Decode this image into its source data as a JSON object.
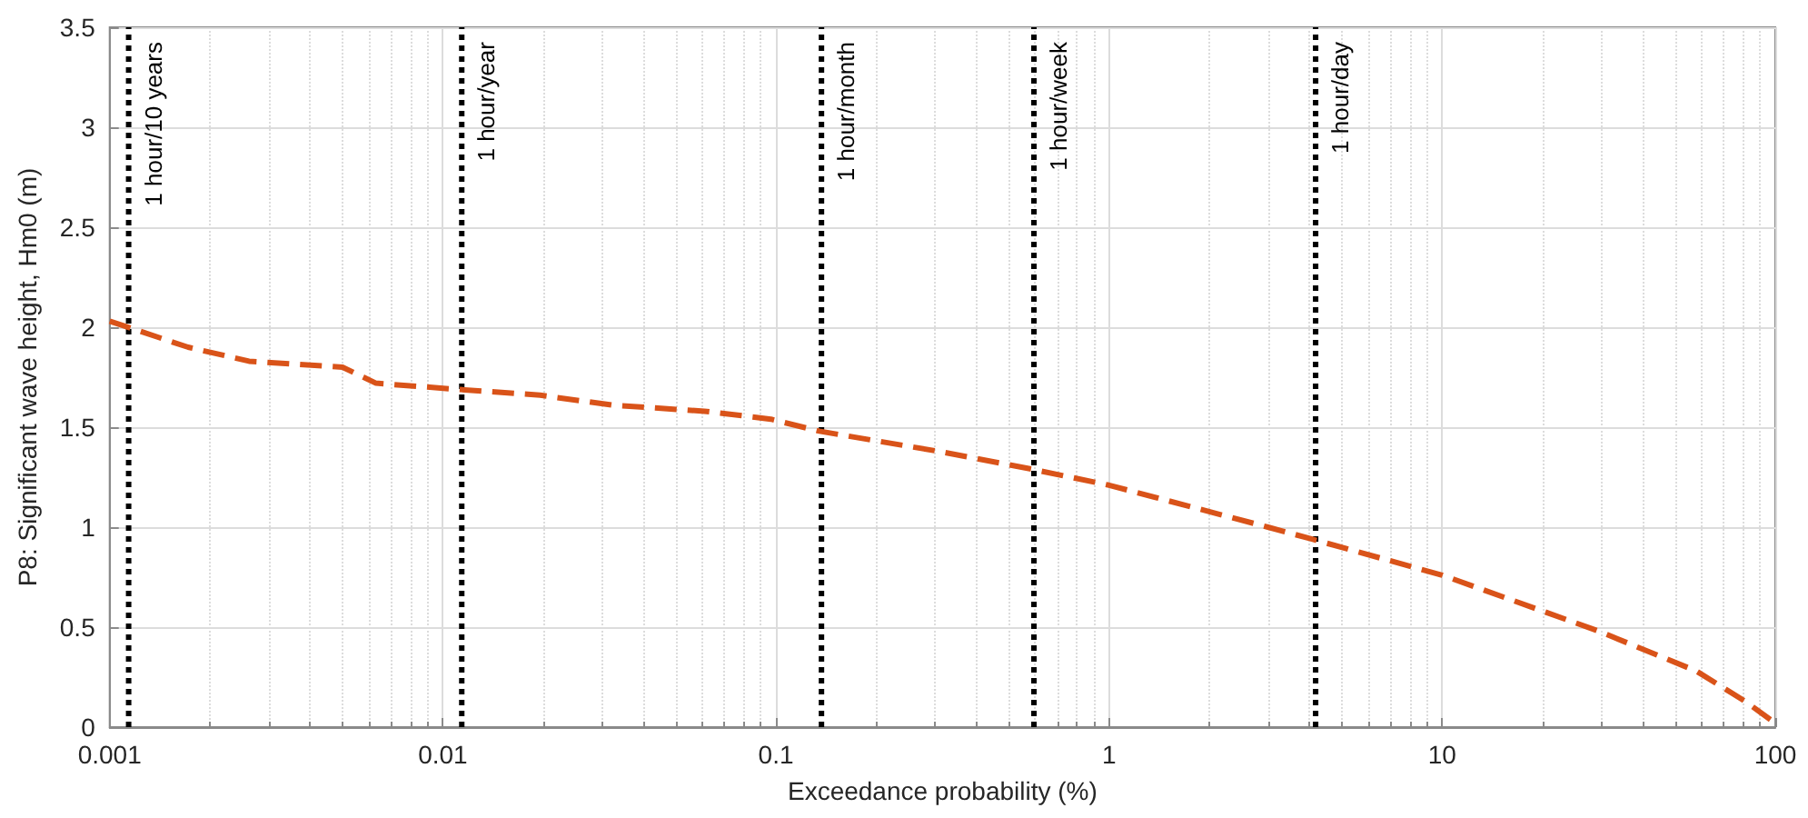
{
  "chart_data": {
    "type": "line",
    "xlabel": "Exceedance probability (%)",
    "ylabel": "P8: Significant wave height, Hm0 (m)",
    "log": "x",
    "grid": true,
    "marker": "none",
    "line_style": "dashed",
    "xlim": [
      0.001,
      100
    ],
    "xticks": [
      0.001,
      0.01,
      0.1,
      1,
      10,
      100
    ],
    "ylim": [
      0,
      3.5
    ],
    "yticks": [
      0,
      0.5,
      1,
      1.5,
      2,
      2.5,
      3,
      3.5
    ],
    "series": [
      {
        "color": "#d95319",
        "x": [
          0.001,
          0.00172,
          0.00262,
          0.005,
          0.00578,
          0.0063,
          0.0109,
          0.0196,
          0.0324,
          0.061,
          0.0966,
          0.135,
          0.306,
          0.586,
          1,
          3,
          4.07,
          10,
          29.5,
          58,
          81,
          100
        ],
        "values": [
          2.03,
          1.9,
          1.83,
          1.8,
          1.75,
          1.72,
          1.69,
          1.66,
          1.61,
          1.58,
          1.54,
          1.48,
          1.38,
          1.29,
          1.21,
          1,
          0.94,
          0.76,
          0.48,
          0.28,
          0.13,
          0.02
        ]
      }
    ],
    "ref_lines": [
      {
        "axis": "x",
        "value": 0.00114,
        "label": "1 hour/10 years",
        "color": "#000000",
        "line_style": "dotted"
      },
      {
        "axis": "x",
        "value": 0.0114,
        "label": "1 hour/year",
        "color": "#000000",
        "line_style": "dotted"
      },
      {
        "axis": "x",
        "value": 0.137,
        "label": "1 hour/month",
        "color": "#000000",
        "line_style": "dotted"
      },
      {
        "axis": "x",
        "value": 0.595,
        "label": "1 hour/week",
        "color": "#000000",
        "line_style": "dotted"
      },
      {
        "axis": "x",
        "value": 4.17,
        "label": "1 hour/day",
        "color": "#000000",
        "line_style": "dotted"
      }
    ]
  }
}
